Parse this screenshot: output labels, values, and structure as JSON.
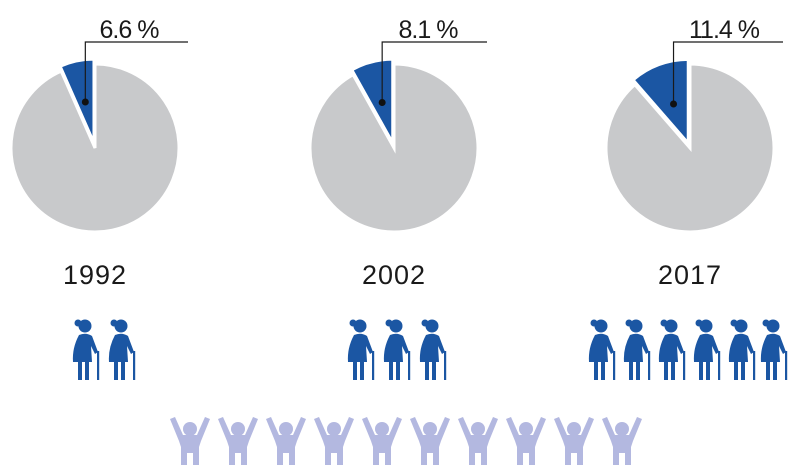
{
  "chart_data": [
    {
      "type": "pie",
      "title": "1992",
      "values": [
        6.6
      ],
      "value_labels": [
        "6.6 %"
      ],
      "color": "#1b56a3"
    },
    {
      "type": "pie",
      "title": "2002",
      "values": [
        8.1
      ],
      "value_labels": [
        "8.1 %"
      ],
      "color": "#1b56a3"
    },
    {
      "type": "pie",
      "title": "2017",
      "values": [
        11.4
      ],
      "value_labels": [
        "11.4 %"
      ],
      "color": "#1b56a3"
    }
  ]
}
